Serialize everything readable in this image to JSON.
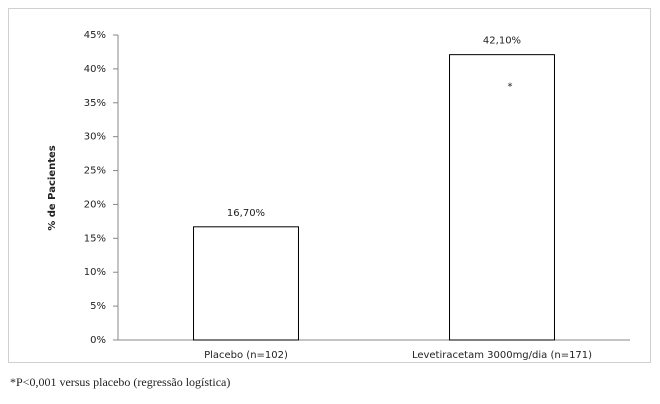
{
  "chart_data": {
    "type": "bar",
    "y_label": "% de Pacientes",
    "categories": [
      "Placebo (n=102)",
      "Levetiracetam 3000mg/dia (n=171)"
    ],
    "values": [
      16.7,
      42.1
    ],
    "value_labels": [
      "16,70%",
      "42,10%"
    ],
    "color": "#ffffff",
    "annotation": "*",
    "ylim": [
      0,
      45
    ],
    "yticks": [
      {
        "value": 0,
        "label": "0%"
      },
      {
        "value": 5,
        "label": "5%"
      },
      {
        "value": 10,
        "label": "10%"
      },
      {
        "value": 15,
        "label": "15%"
      },
      {
        "value": 20,
        "label": "20%"
      },
      {
        "value": 25,
        "label": "25%"
      },
      {
        "value": 30,
        "label": "30%"
      },
      {
        "value": 35,
        "label": "35%"
      },
      {
        "value": 40,
        "label": "40%"
      },
      {
        "value": 45,
        "label": "45%"
      }
    ],
    "footnote": "*P<0,001 versus placebo (regressão logística)"
  }
}
